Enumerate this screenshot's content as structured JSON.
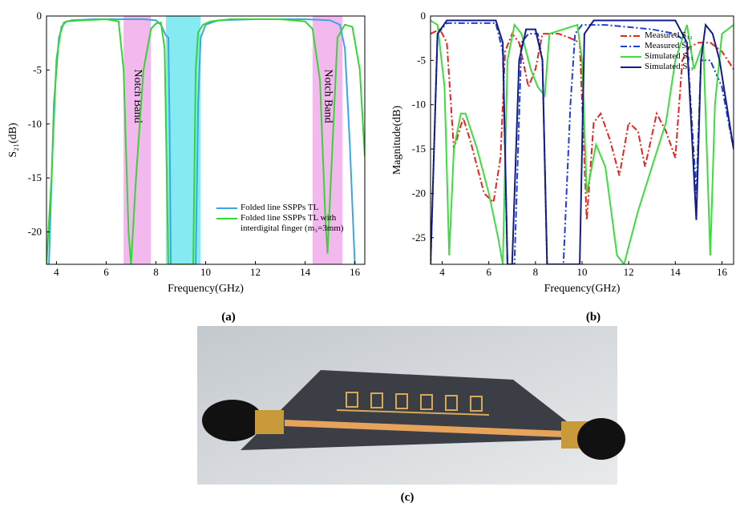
{
  "chart_data": [
    {
      "type": "line",
      "xlabel": "Frequency(GHz)",
      "ylabel": "S₂₁(dB)",
      "xlim": [
        3.6,
        16.4
      ],
      "xticks": [
        4,
        6,
        8,
        10,
        12,
        14,
        16
      ],
      "ylim": [
        -23,
        0
      ],
      "yticks": [
        0,
        -5,
        -10,
        -15,
        -20
      ],
      "bands": [
        {
          "xlim": [
            6.7,
            7.8
          ],
          "color": "#f3b8ee",
          "label": "Notch Band"
        },
        {
          "xlim": [
            8.4,
            9.8
          ],
          "color": "#86eaf2"
        },
        {
          "xlim": [
            14.3,
            15.5
          ],
          "color": "#f3b8ee",
          "label": "Notch Band"
        }
      ],
      "legend": "lower right",
      "series": [
        {
          "name": "Folded line SSPPs TL",
          "color": "#3aa7e3",
          "x": [
            3.7,
            3.9,
            4.1,
            4.3,
            4.6,
            5.5,
            6.5,
            7.5,
            8.0,
            8.2,
            8.4,
            8.5,
            8.55,
            8.6,
            9.6,
            9.7,
            9.8,
            10.0,
            10.5,
            12,
            14,
            15.0,
            15.4,
            15.6,
            15.8,
            16.0
          ],
          "values": [
            -23,
            -8,
            -2,
            -0.6,
            -0.4,
            -0.3,
            -0.3,
            -0.3,
            -0.4,
            -0.8,
            -1.8,
            -2,
            -10,
            -23,
            -23,
            -8,
            -2,
            -0.8,
            -0.4,
            -0.3,
            -0.3,
            -0.4,
            -0.8,
            -3,
            -12,
            -23
          ]
        },
        {
          "name": "Folded line SSPPs TL with interdigital finger (m₃=3mm)",
          "color": "#33d633",
          "x": [
            3.6,
            3.8,
            4.0,
            4.2,
            4.4,
            5.0,
            6.0,
            6.5,
            6.7,
            6.9,
            7.0,
            7.2,
            7.5,
            7.8,
            8.0,
            8.2,
            8.35,
            8.5,
            9.5,
            9.6,
            9.7,
            9.9,
            10.2,
            11,
            12,
            13,
            14.0,
            14.3,
            14.6,
            14.8,
            14.9,
            15.1,
            15.3,
            15.6,
            15.9,
            16.2,
            16.4
          ],
          "values": [
            -23,
            -15,
            -4,
            -1,
            -0.5,
            -0.4,
            -0.3,
            -0.5,
            -5,
            -20,
            -23,
            -15,
            -5,
            -1.2,
            -0.7,
            -0.6,
            -3,
            -23,
            -23,
            -5,
            -1.5,
            -0.8,
            -0.5,
            -0.3,
            -0.3,
            -0.3,
            -0.5,
            -1.2,
            -6,
            -18,
            -22,
            -12,
            -2,
            -0.8,
            -1,
            -5,
            -13
          ]
        }
      ]
    },
    {
      "type": "line",
      "xlabel": "Frequency(GHz)",
      "ylabel": "Magnitude(dB)",
      "xlim": [
        3.5,
        16.5
      ],
      "xticks": [
        4,
        6,
        8,
        10,
        12,
        14,
        16
      ],
      "ylim": [
        -28,
        0
      ],
      "yticks": [
        0,
        -5,
        -10,
        -15,
        -20,
        -25
      ],
      "legend": "upper right",
      "series": [
        {
          "name": "Measured S₁₁",
          "color": "#e8231e",
          "dash": "dashdot",
          "x": [
            3.5,
            3.9,
            4.2,
            4.5,
            4.9,
            5.2,
            5.8,
            6.2,
            6.5,
            6.7,
            7.0,
            7.3,
            7.7,
            8.0,
            8.3,
            9.0,
            9.5,
            9.9,
            10.2,
            10.5,
            10.8,
            11.2,
            11.6,
            12.0,
            12.4,
            12.7,
            13.2,
            13.6,
            14.0,
            14.3,
            14.6,
            15.0,
            15.5,
            16.0,
            16.5
          ],
          "values": [
            -2,
            -1.5,
            -3,
            -15,
            -11.5,
            -14,
            -20,
            -21,
            -16,
            -4,
            -2,
            -3,
            -8,
            -6,
            -2,
            -2,
            -2.5,
            -3,
            -23,
            -12,
            -11,
            -14,
            -18,
            -12,
            -13,
            -17,
            -11,
            -13,
            -16,
            -5,
            -3.5,
            -3,
            -3,
            -4,
            -6
          ]
        },
        {
          "name": "Measured S₂₁",
          "color": "#1a3fd6",
          "dash": "dashdot",
          "x": [
            3.5,
            3.8,
            4.2,
            6.3,
            6.6,
            6.8,
            7.1,
            7.4,
            7.7,
            8.1,
            8.3,
            8.5,
            9.2,
            9.5,
            9.7,
            10.0,
            11,
            13,
            14,
            14.5,
            14.9,
            15.1,
            15.5,
            16.0,
            16.5
          ],
          "values": [
            -28,
            -2,
            -0.8,
            -0.8,
            -4,
            -28,
            -28,
            -3,
            -2,
            -2,
            -5,
            -28,
            -28,
            -10,
            -2,
            -1,
            -1,
            -1.5,
            -2,
            -3,
            -20,
            -5,
            -5,
            -8,
            -15
          ]
        },
        {
          "name": "Simulated S₁₁",
          "color": "#3fdc3f",
          "x": [
            3.5,
            3.8,
            4.1,
            4.3,
            4.5,
            4.8,
            5.0,
            5.5,
            6.0,
            6.4,
            6.6,
            6.8,
            7.1,
            7.4,
            7.8,
            8.1,
            8.4,
            8.6,
            9.8,
            10.0,
            10.2,
            10.6,
            11.0,
            11.5,
            11.8,
            12.4,
            13.0,
            13.6,
            14.0,
            14.5,
            14.8,
            15.2,
            15.5,
            15.7,
            16.0,
            16.5
          ],
          "values": [
            -0.5,
            -1,
            -8,
            -27,
            -15,
            -11,
            -11,
            -15,
            -20,
            -25,
            -28,
            -5,
            -1,
            -2,
            -6,
            -8,
            -9,
            -2,
            -1,
            -5,
            -20,
            -14.5,
            -17,
            -27,
            -28,
            -22,
            -17,
            -12,
            -5,
            -1,
            -6,
            -3,
            -27,
            -10,
            -2,
            -1
          ]
        },
        {
          "name": "Simulated S₂₁",
          "color": "#141c8c",
          "x": [
            3.5,
            3.8,
            4.2,
            6.3,
            6.6,
            6.8,
            7.0,
            7.3,
            7.6,
            8.0,
            8.3,
            8.5,
            9.9,
            10.1,
            10.5,
            14.0,
            14.5,
            14.9,
            15.1,
            15.3,
            15.6,
            15.9,
            16.2,
            16.5
          ],
          "values": [
            -28,
            -2,
            -0.5,
            -0.5,
            -3,
            -28,
            -28,
            -5,
            -1.5,
            -1.5,
            -5,
            -28,
            -28,
            -2,
            -0.5,
            -0.5,
            -3,
            -23,
            -5,
            -1,
            -2,
            -5,
            -10,
            -15
          ]
        }
      ]
    }
  ],
  "captions": [
    "(a)",
    "(b)",
    "(c)"
  ]
}
